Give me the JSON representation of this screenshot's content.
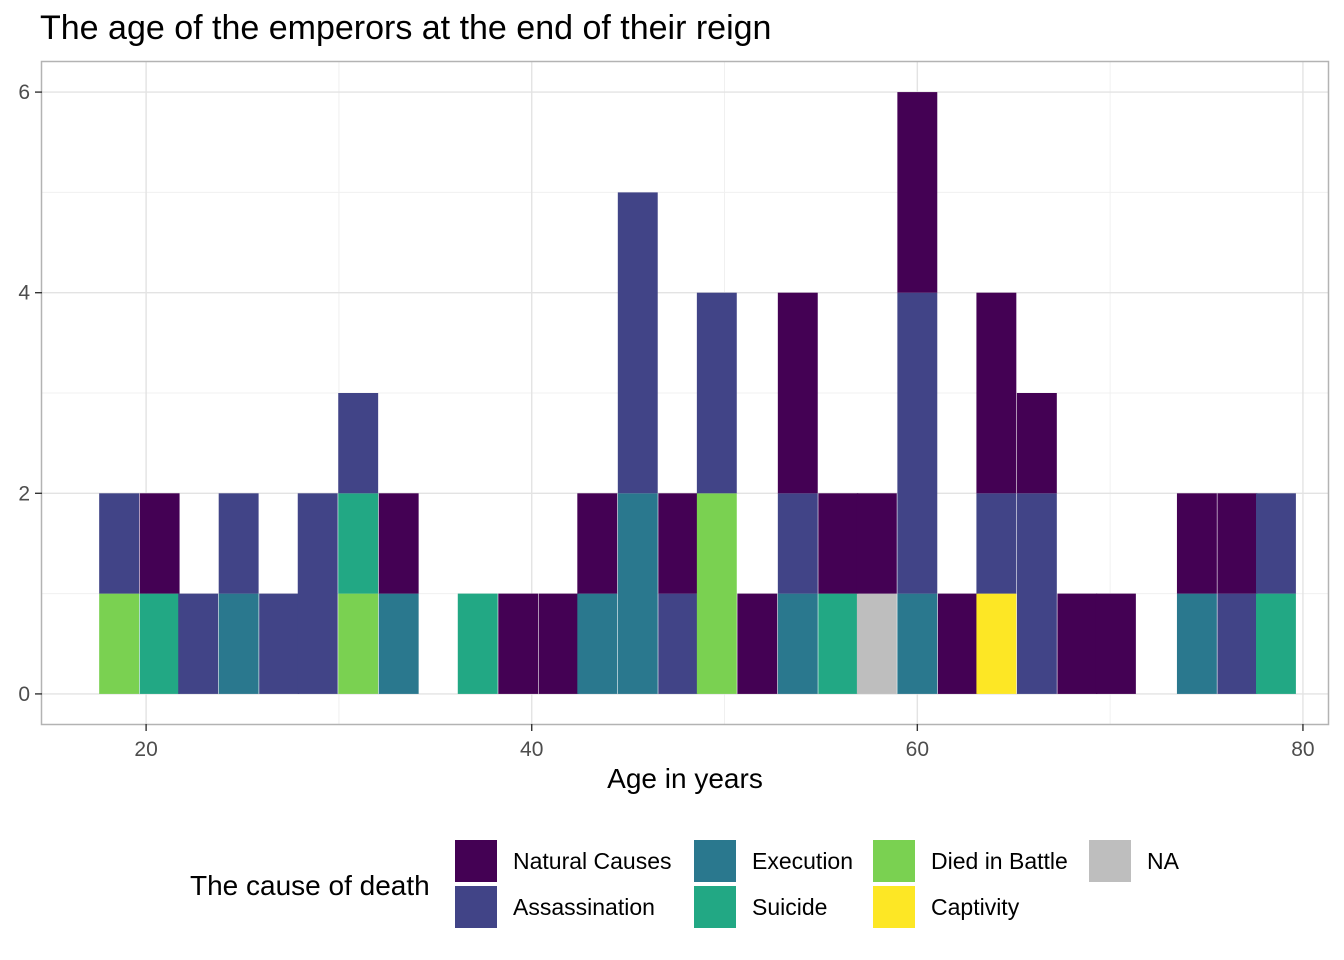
{
  "chart_data": {
    "type": "bar",
    "stacked": true,
    "title": "The age of the emperors at the end of their reign",
    "xlabel": "Age in years",
    "ylabel": "",
    "xlim": [
      14.6,
      81.3
    ],
    "ylim": [
      -0.3,
      6.3
    ],
    "xticks": [
      20,
      40,
      60,
      80
    ],
    "yticks": [
      0,
      2,
      4,
      6
    ],
    "grid": true,
    "legend_position": "bottom",
    "legend_title": "The cause of death",
    "bin_width": 2.07,
    "bin_centers": [
      18.6,
      20.7,
      22.7,
      24.8,
      26.9,
      28.9,
      31.0,
      33.1,
      35.2,
      37.2,
      39.3,
      41.4,
      43.4,
      45.5,
      47.6,
      49.6,
      51.7,
      53.8,
      55.9,
      57.9,
      60.0,
      62.1,
      64.1,
      66.2,
      68.3,
      70.3,
      72.4,
      74.5,
      76.6,
      78.6
    ],
    "series": [
      {
        "name": "Natural Causes",
        "color": "#440154",
        "values": [
          0,
          1,
          0,
          0,
          0,
          0,
          0,
          1,
          0,
          0,
          1,
          1,
          1,
          0,
          1,
          0,
          1,
          2,
          1,
          1,
          2,
          1,
          2,
          1,
          1,
          1,
          0,
          1,
          1,
          0
        ]
      },
      {
        "name": "Assassination",
        "color": "#414487",
        "values": [
          1,
          0,
          1,
          1,
          1,
          2,
          1,
          0,
          0,
          0,
          0,
          0,
          0,
          3,
          1,
          2,
          0,
          1,
          0,
          0,
          3,
          0,
          1,
          2,
          0,
          0,
          0,
          0,
          1,
          1
        ]
      },
      {
        "name": "Execution",
        "color": "#2A788E",
        "values": [
          0,
          0,
          0,
          1,
          0,
          0,
          0,
          1,
          0,
          0,
          0,
          0,
          1,
          2,
          0,
          0,
          0,
          1,
          0,
          0,
          1,
          0,
          0,
          0,
          0,
          0,
          0,
          1,
          0,
          0
        ]
      },
      {
        "name": "Suicide",
        "color": "#22A884",
        "values": [
          0,
          1,
          0,
          0,
          0,
          0,
          1,
          0,
          0,
          1,
          0,
          0,
          0,
          0,
          0,
          0,
          0,
          0,
          1,
          0,
          0,
          0,
          0,
          0,
          0,
          0,
          0,
          0,
          0,
          1
        ]
      },
      {
        "name": "Died in Battle",
        "color": "#7AD151",
        "values": [
          1,
          0,
          0,
          0,
          0,
          0,
          1,
          0,
          0,
          0,
          0,
          0,
          0,
          0,
          0,
          2,
          0,
          0,
          0,
          0,
          0,
          0,
          0,
          0,
          0,
          0,
          0,
          0,
          0,
          0
        ]
      },
      {
        "name": "Captivity",
        "color": "#FDE725",
        "values": [
          0,
          0,
          0,
          0,
          0,
          0,
          0,
          0,
          0,
          0,
          0,
          0,
          0,
          0,
          0,
          0,
          0,
          0,
          0,
          0,
          0,
          0,
          1,
          0,
          0,
          0,
          0,
          0,
          0,
          0
        ]
      },
      {
        "name": "NA",
        "color": "#BEBEBE",
        "values": [
          0,
          0,
          0,
          0,
          0,
          0,
          0,
          0,
          0,
          0,
          0,
          0,
          0,
          0,
          0,
          0,
          0,
          0,
          0,
          1,
          0,
          0,
          0,
          0,
          0,
          0,
          0,
          0,
          0,
          0
        ]
      }
    ]
  }
}
